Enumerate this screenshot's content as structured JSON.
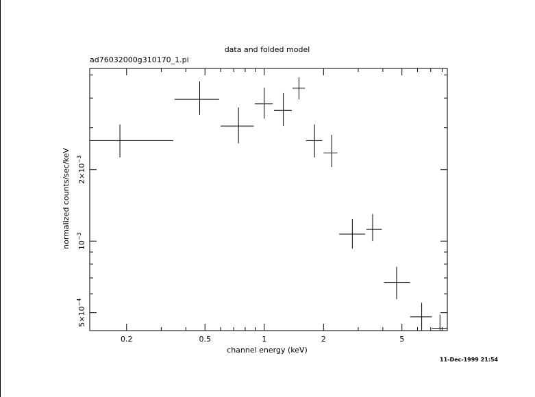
{
  "chart_data": {
    "type": "scatter",
    "title": "data and folded model",
    "subtitle": "ad76032000g310170_1.pi",
    "xlabel": "channel energy (keV)",
    "ylabel": "normalized counts/sec/keV",
    "x_scale": "log",
    "y_scale": "log",
    "xlim": [
      0.13,
      8.5
    ],
    "ylim": [
      0.00042,
      0.00533
    ],
    "x_ticks": [
      {
        "value": 0.2,
        "label": "0.2"
      },
      {
        "value": 0.5,
        "label": "0.5"
      },
      {
        "value": 1,
        "label": "1"
      },
      {
        "value": 2,
        "label": "2"
      },
      {
        "value": 5,
        "label": "5"
      }
    ],
    "y_ticks": [
      {
        "value": 0.0005,
        "mantissa": "5×10",
        "exp": "−4"
      },
      {
        "value": 0.001,
        "mantissa": "10",
        "exp": "−3"
      },
      {
        "value": 0.002,
        "mantissa": "2×10",
        "exp": "−3"
      }
    ],
    "series": [
      {
        "points": [
          {
            "x": 0.185,
            "y": 0.00265,
            "xlo": 0.13,
            "xhi": 0.345,
            "ylo": 0.00225,
            "yhi": 0.0031
          },
          {
            "x": 0.47,
            "y": 0.00395,
            "xlo": 0.35,
            "xhi": 0.59,
            "ylo": 0.0034,
            "yhi": 0.0047
          },
          {
            "x": 0.74,
            "y": 0.00305,
            "xlo": 0.6,
            "xhi": 0.885,
            "ylo": 0.00258,
            "yhi": 0.00365
          },
          {
            "x": 1.0,
            "y": 0.00378,
            "xlo": 0.895,
            "xhi": 1.105,
            "ylo": 0.00328,
            "yhi": 0.00443
          },
          {
            "x": 1.25,
            "y": 0.00355,
            "xlo": 1.12,
            "xhi": 1.38,
            "ylo": 0.00305,
            "yhi": 0.0042
          },
          {
            "x": 1.5,
            "y": 0.0044,
            "xlo": 1.39,
            "xhi": 1.61,
            "ylo": 0.00395,
            "yhi": 0.0049
          },
          {
            "x": 1.8,
            "y": 0.00265,
            "xlo": 1.63,
            "xhi": 1.97,
            "ylo": 0.00225,
            "yhi": 0.0031
          },
          {
            "x": 2.2,
            "y": 0.00235,
            "xlo": 2.0,
            "xhi": 2.35,
            "ylo": 0.00205,
            "yhi": 0.0028
          },
          {
            "x": 2.8,
            "y": 0.00107,
            "xlo": 2.4,
            "xhi": 3.25,
            "ylo": 0.00093,
            "yhi": 0.00124
          },
          {
            "x": 3.55,
            "y": 0.00112,
            "xlo": 3.3,
            "xhi": 3.95,
            "ylo": 0.001,
            "yhi": 0.0013
          },
          {
            "x": 4.7,
            "y": 0.00067,
            "xlo": 4.05,
            "xhi": 5.5,
            "ylo": 0.00057,
            "yhi": 0.00078
          },
          {
            "x": 6.3,
            "y": 0.00048,
            "xlo": 5.5,
            "xhi": 7.1,
            "ylo": 0.00042,
            "yhi": 0.00055
          },
          {
            "x": 7.8,
            "y": 0.00043,
            "xlo": 7.1,
            "xhi": 8.5,
            "ylo": 0.00042,
            "yhi": 0.00049
          }
        ]
      }
    ]
  },
  "timestamp": "11-Dec-1999 21:54"
}
